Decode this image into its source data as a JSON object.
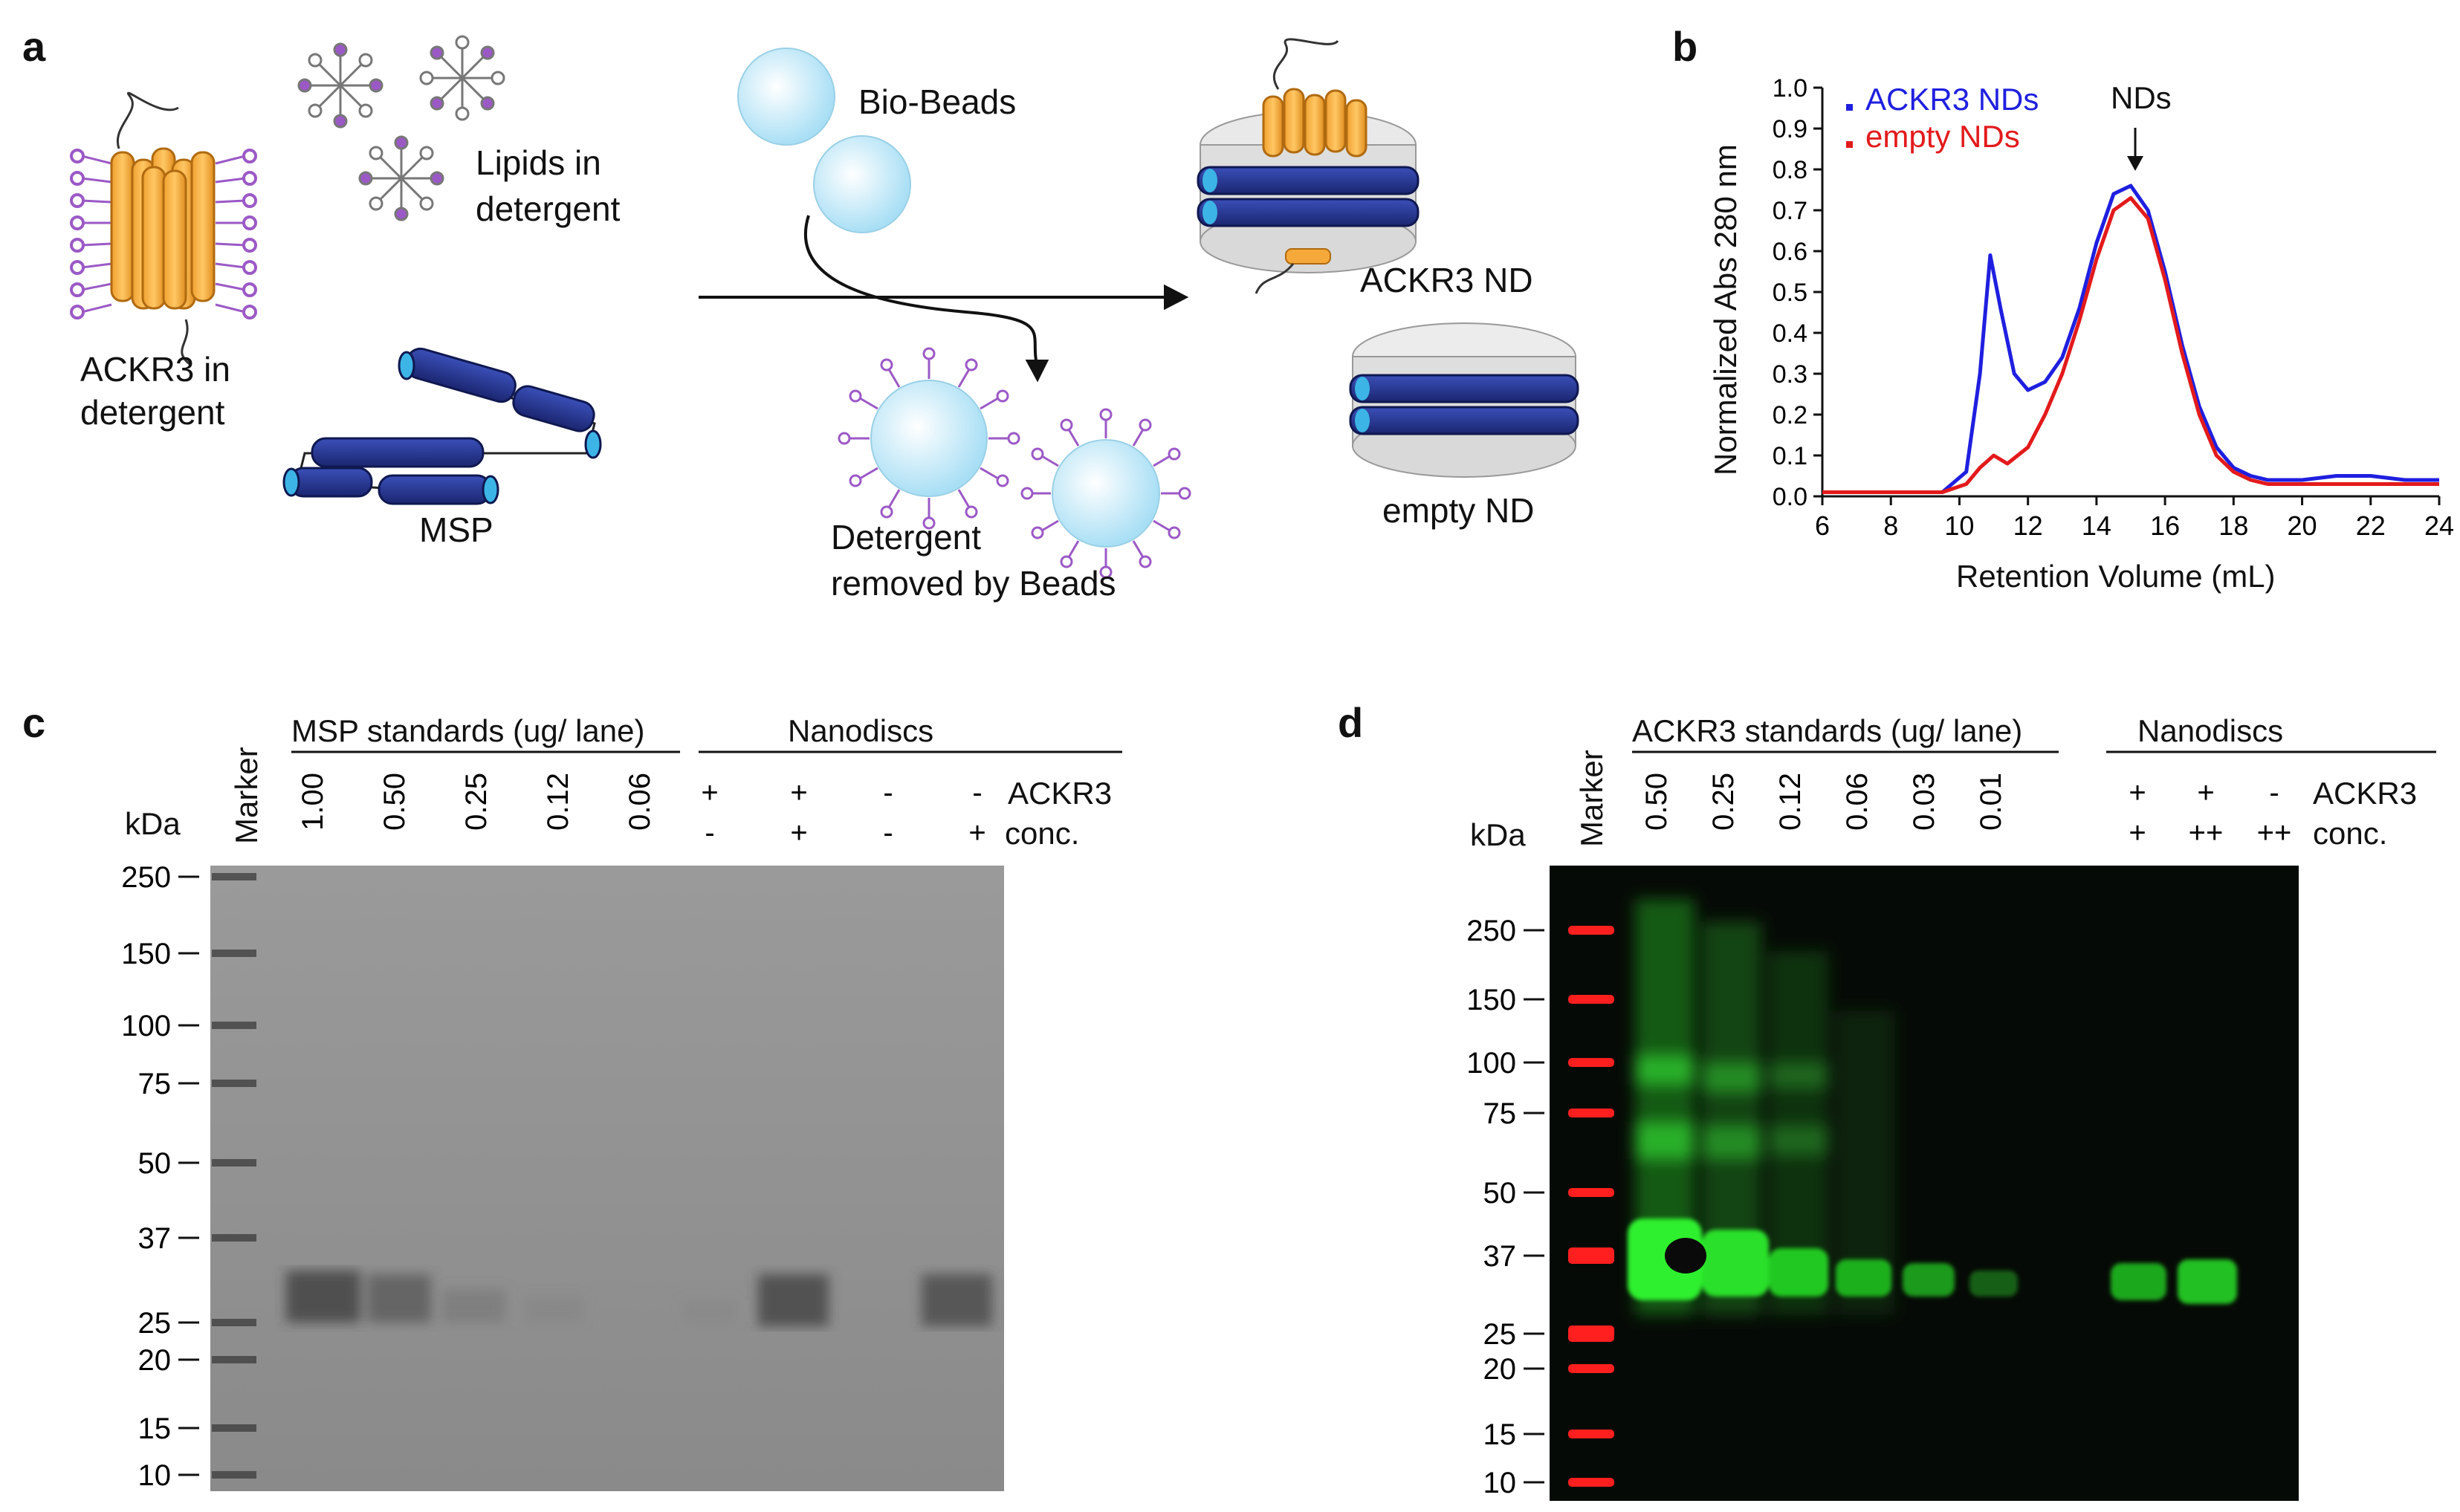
{
  "panel_a": {
    "letter": "a",
    "ackr3_label": [
      "ACKR3 in",
      "detergent"
    ],
    "lipids_label": [
      "Lipids in",
      "detergent"
    ],
    "msp_label": "MSP",
    "biobeads_label": "Bio-Beads",
    "detergent_removed_label": [
      "Detergent",
      "removed by Beads"
    ],
    "ackr3_nd_label": "ACKR3 ND",
    "empty_nd_label": "empty ND",
    "colors": {
      "receptor": "#f5a93a",
      "lipid_head": "#9b59c6",
      "bead": "#cfeefb",
      "msp": "#2f3f9e"
    }
  },
  "panel_b": {
    "letter": "b",
    "arrow_label": "NDs",
    "chart_data": {
      "type": "line",
      "xlabel": "Retention Volume (mL)",
      "ylabel": "Normalized Abs 280 nm",
      "xlim": [
        6,
        24
      ],
      "ylim": [
        0,
        1.0
      ],
      "xticks": [
        "6",
        "8",
        "10",
        "12",
        "14",
        "16",
        "18",
        "20",
        "22",
        "24"
      ],
      "yticks": [
        "0.0",
        "0.1",
        "0.2",
        "0.3",
        "0.4",
        "0.5",
        "0.6",
        "0.7",
        "0.8",
        "0.9",
        "1.0"
      ],
      "legend_position": "top-left",
      "series": [
        {
          "name": "ACKR3 NDs",
          "color": "#1f1fe0",
          "x": [
            6,
            8,
            9.5,
            10.2,
            10.6,
            10.9,
            11.2,
            11.6,
            12.0,
            12.5,
            13.0,
            13.5,
            14.0,
            14.5,
            15.0,
            15.5,
            16.0,
            16.5,
            17.0,
            17.5,
            18.0,
            18.5,
            19,
            20,
            21,
            22,
            23,
            24
          ],
          "y": [
            0.01,
            0.01,
            0.01,
            0.06,
            0.3,
            0.59,
            0.46,
            0.3,
            0.26,
            0.28,
            0.34,
            0.46,
            0.62,
            0.74,
            0.76,
            0.7,
            0.55,
            0.37,
            0.22,
            0.12,
            0.07,
            0.05,
            0.04,
            0.04,
            0.05,
            0.05,
            0.04,
            0.04
          ]
        },
        {
          "name": "empty NDs",
          "color": "#e31a1c",
          "x": [
            6,
            8,
            9.5,
            10.2,
            10.6,
            11.0,
            11.4,
            12.0,
            12.5,
            13.0,
            13.5,
            14.0,
            14.5,
            15.0,
            15.5,
            16.0,
            16.5,
            17.0,
            17.5,
            18.0,
            18.5,
            19,
            20,
            21,
            22,
            23,
            24
          ],
          "y": [
            0.01,
            0.01,
            0.01,
            0.03,
            0.07,
            0.1,
            0.08,
            0.12,
            0.2,
            0.3,
            0.43,
            0.58,
            0.7,
            0.73,
            0.68,
            0.53,
            0.35,
            0.2,
            0.1,
            0.06,
            0.04,
            0.03,
            0.03,
            0.03,
            0.03,
            0.03,
            0.03
          ]
        }
      ]
    }
  },
  "panel_c": {
    "letter": "c",
    "kda_label": "kDa",
    "marker_label": "Marker",
    "group_standards": "MSP standards (ug/ lane)",
    "group_nanodiscs": "Nanodiscs",
    "standard_lanes": [
      "1.00",
      "0.50",
      "0.25",
      "0.12",
      "0.06"
    ],
    "ackr3_row": [
      "+",
      "+",
      "-",
      "-"
    ],
    "conc_row": [
      "-",
      "+",
      "-",
      "+"
    ],
    "ackr3_row_label": "ACKR3",
    "conc_row_label": "conc.",
    "mw_markers": [
      "250",
      "150",
      "100",
      "75",
      "50",
      "37",
      "25",
      "20",
      "15",
      "10"
    ],
    "gel_color": "#8e8e8e"
  },
  "panel_d": {
    "letter": "d",
    "kda_label": "kDa",
    "marker_label": "Marker",
    "group_standards": "ACKR3 standards (ug/ lane)",
    "group_nanodiscs": "Nanodiscs",
    "standard_lanes": [
      "0.50",
      "0.25",
      "0.12",
      "0.06",
      "0.03",
      "0.01"
    ],
    "ackr3_row": [
      "+",
      "+",
      "-"
    ],
    "conc_row": [
      "+",
      "++",
      "++"
    ],
    "ackr3_row_label": "ACKR3",
    "conc_row_label": "conc.",
    "mw_markers": [
      "250",
      "150",
      "100",
      "75",
      "50",
      "37",
      "25",
      "20",
      "15",
      "10"
    ],
    "blot_colors": {
      "background": "#050805",
      "ladder": "#ff1f1f",
      "signal": "#22e022"
    }
  }
}
